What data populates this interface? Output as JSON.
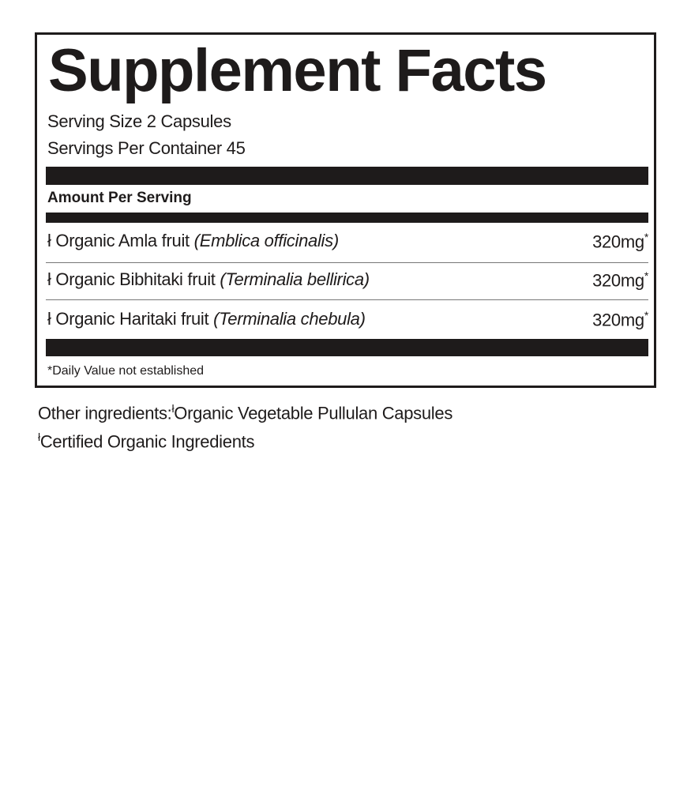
{
  "title": "Supplement Facts",
  "serving_size": "Serving Size 2 Capsules",
  "servings_per_container": "Servings Per Container 45",
  "amount_header": "Amount Per Serving",
  "ingredients": [
    {
      "mark": "ł",
      "name": "Organic Amla fruit",
      "latin": "(Emblica officinalis)",
      "amount": "320mg",
      "dv": "*"
    },
    {
      "mark": "ł",
      "name": "Organic Bibhitaki fruit",
      "latin": "(Terminalia bellirica)",
      "amount": "320mg",
      "dv": "*"
    },
    {
      "mark": "ł",
      "name": "Organic Haritaki fruit",
      "latin": "(Terminalia chebula)",
      "amount": "320mg",
      "dv": "*"
    }
  ],
  "footnote": "*Daily Value not established",
  "other_ingredients": {
    "label": "Other ingredients:",
    "mark": "ł",
    "text": "Organic Vegetable Pullulan Capsules"
  },
  "certified_note": {
    "mark": "ł",
    "text": "Certified Organic Ingredients"
  }
}
